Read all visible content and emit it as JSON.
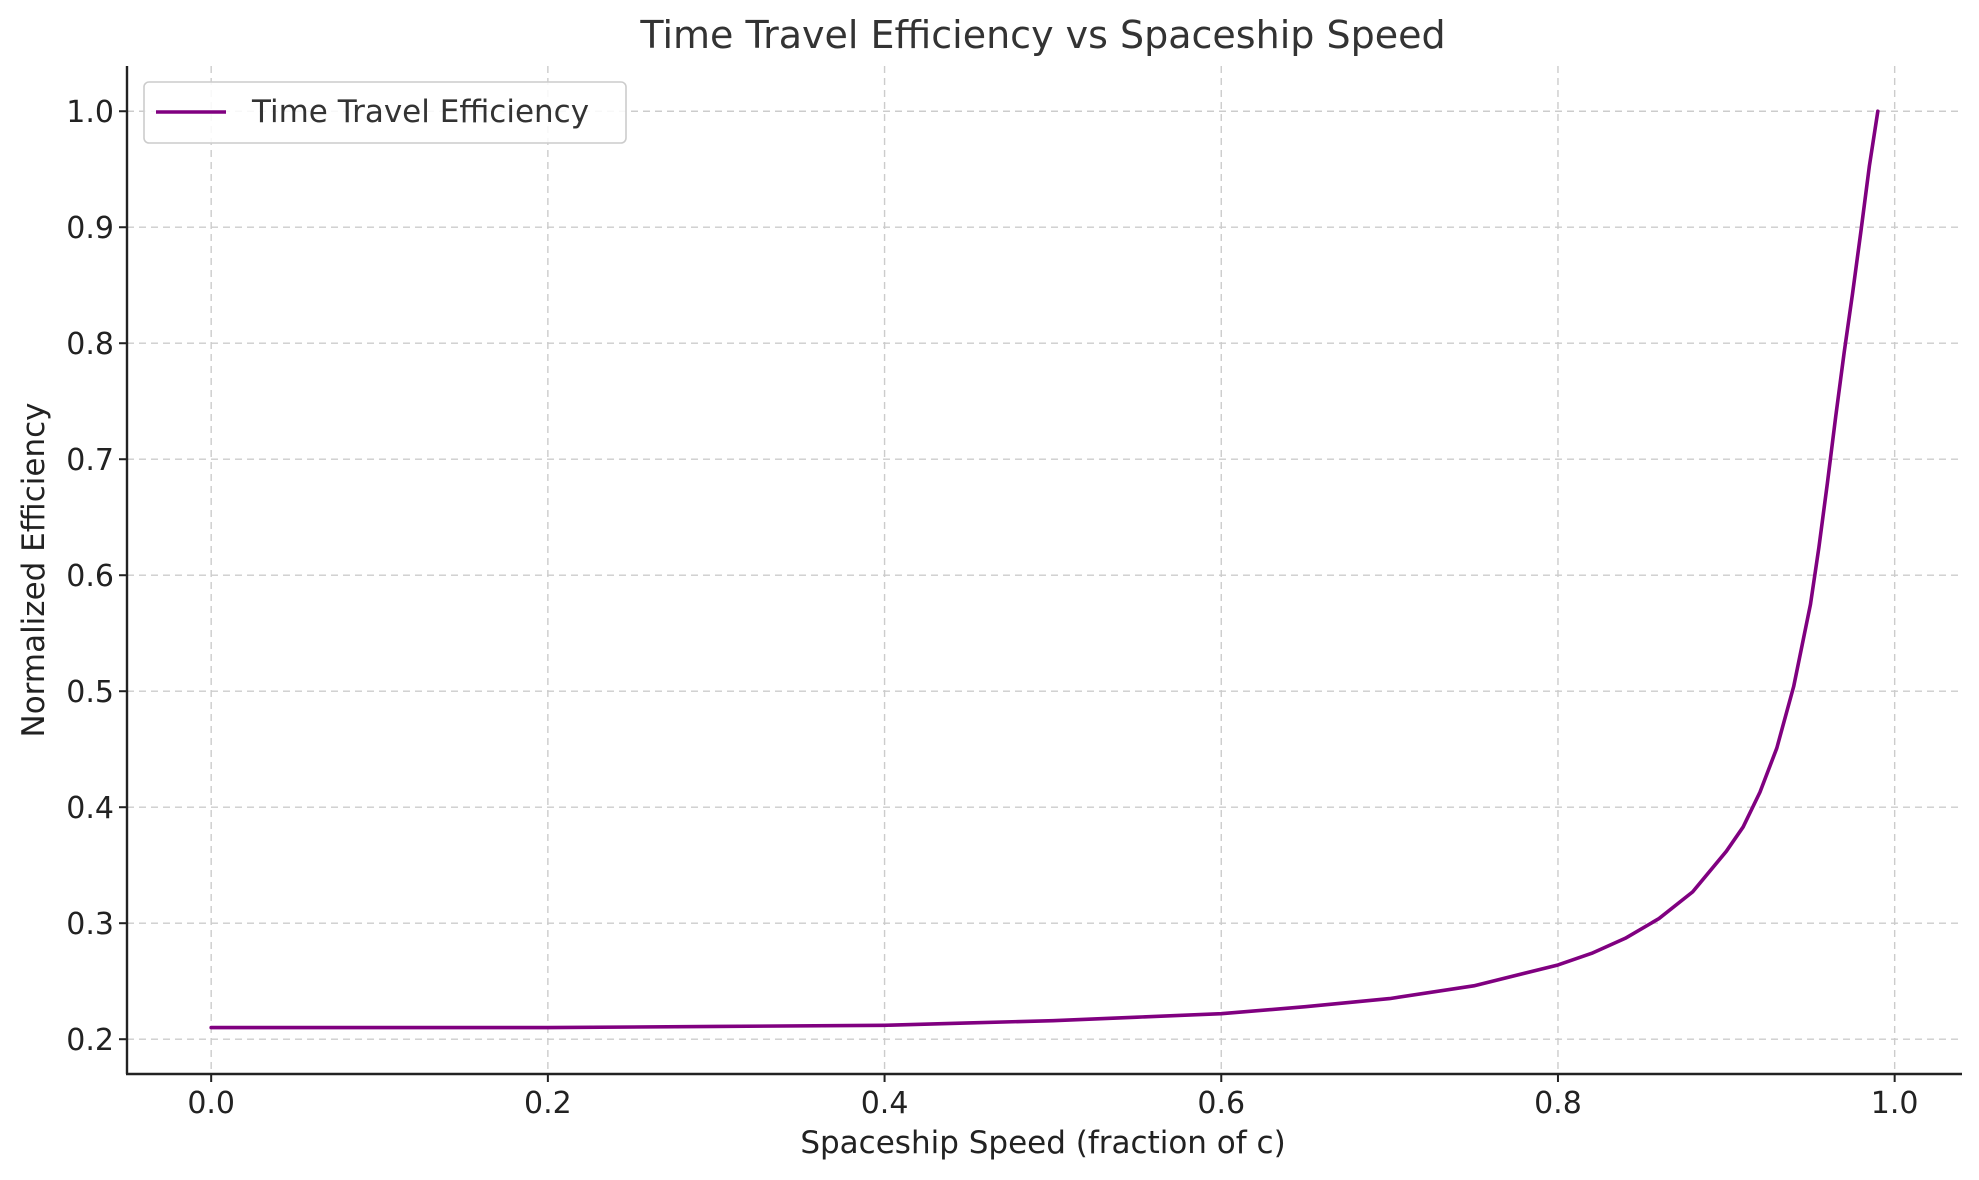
{
  "chart_data": {
    "type": "line",
    "title": "Time Travel Efficiency vs Spaceship Speed",
    "xlabel": "Spaceship Speed (fraction of c)",
    "ylabel": "Normalized Efficiency",
    "xlim": [
      -0.05,
      1.04
    ],
    "ylim": [
      0.17,
      1.039
    ],
    "x_ticks": [
      0.0,
      0.2,
      0.4,
      0.6,
      0.8,
      1.0
    ],
    "x_tick_labels": [
      "0.0",
      "0.2",
      "0.4",
      "0.6",
      "0.8",
      "1.0"
    ],
    "y_ticks": [
      0.2,
      0.3,
      0.4,
      0.5,
      0.6,
      0.7,
      0.8,
      0.9,
      1.0
    ],
    "y_tick_labels": [
      "0.2",
      "0.3",
      "0.4",
      "0.5",
      "0.6",
      "0.7",
      "0.8",
      "0.9",
      "1.0"
    ],
    "grid": true,
    "grid_style": "dashed",
    "legend_position": "top-left",
    "series": [
      {
        "name": "Time Travel Efficiency",
        "color": "#800080",
        "x": [
          0.0,
          0.1,
          0.2,
          0.3,
          0.4,
          0.45,
          0.5,
          0.55,
          0.6,
          0.65,
          0.7,
          0.75,
          0.8,
          0.82,
          0.84,
          0.86,
          0.88,
          0.9,
          0.91,
          0.92,
          0.93,
          0.94,
          0.95,
          0.955,
          0.96,
          0.965,
          0.97,
          0.975,
          0.98,
          0.985,
          0.99
        ],
        "y": [
          0.21,
          0.21,
          0.21,
          0.211,
          0.212,
          0.214,
          0.216,
          0.219,
          0.222,
          0.228,
          0.235,
          0.246,
          0.264,
          0.274,
          0.287,
          0.304,
          0.327,
          0.362,
          0.383,
          0.413,
          0.451,
          0.504,
          0.575,
          0.624,
          0.679,
          0.737,
          0.792,
          0.843,
          0.897,
          0.953,
          1.0
        ]
      }
    ]
  }
}
